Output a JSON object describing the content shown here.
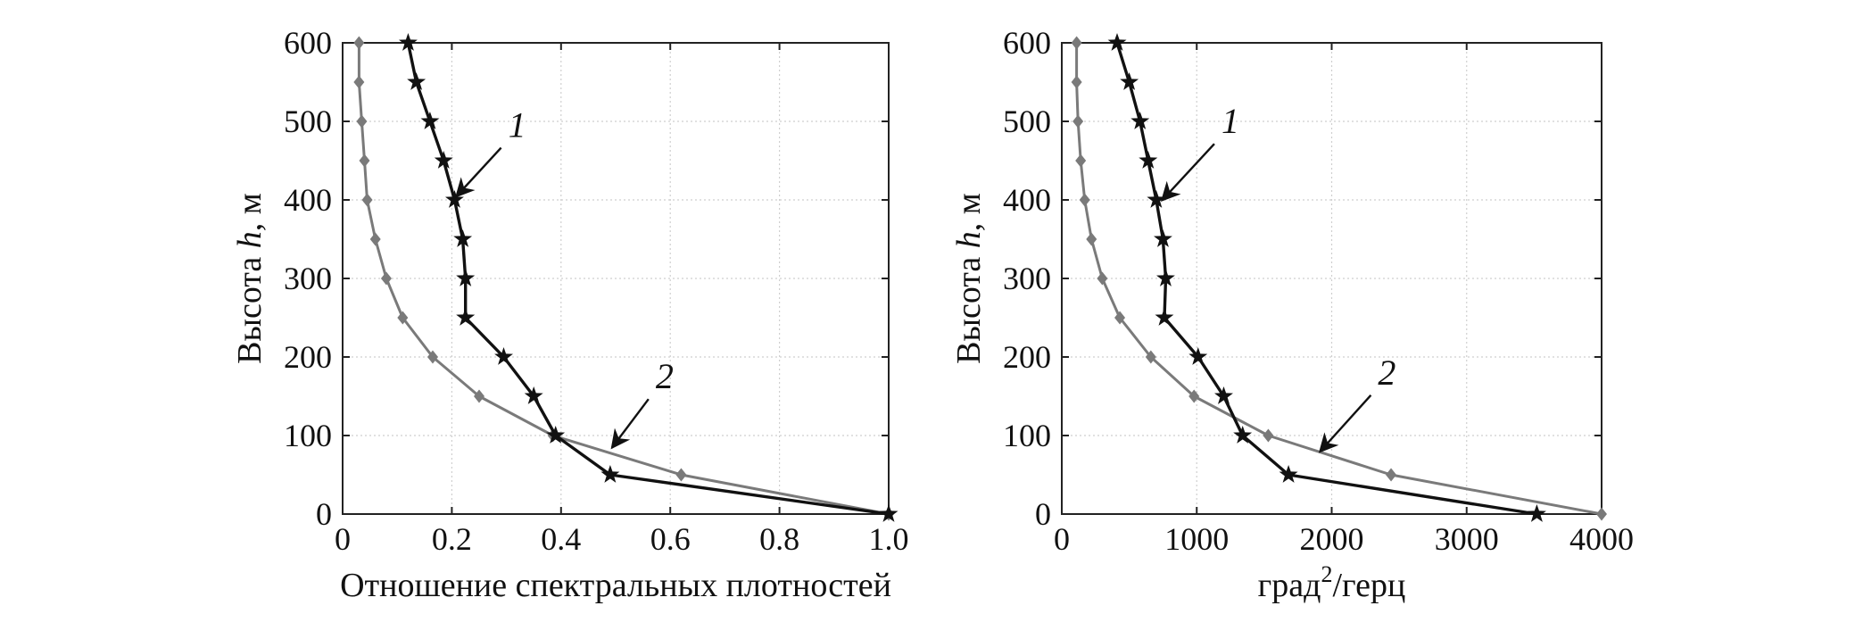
{
  "figure": {
    "colors": {
      "series1": "#111111",
      "series2": "#7a7a7a",
      "axis": "#222222"
    }
  },
  "chart_data": [
    {
      "type": "line",
      "title": "",
      "xlabel": "Отношение спектральных плотностей",
      "ylabel": "Высота h, м",
      "ylabel_parts": {
        "before": "Высота ",
        "italic": "h",
        "after": ", м"
      },
      "xlim": [
        0,
        1.0
      ],
      "ylim": [
        0,
        600
      ],
      "xticks": [
        0,
        0.2,
        0.4,
        0.6,
        0.8,
        1.0
      ],
      "xtick_labels": [
        "0",
        "0.2",
        "0.4",
        "0.6",
        "0.8",
        "1.0"
      ],
      "yticks": [
        0,
        100,
        200,
        300,
        400,
        500,
        600
      ],
      "ytick_labels": [
        "0",
        "100",
        "200",
        "300",
        "400",
        "500",
        "600"
      ],
      "grid": true,
      "series": [
        {
          "name": "1",
          "marker": "star",
          "color": "#111111",
          "x": [
            1.0,
            0.49,
            0.39,
            0.35,
            0.295,
            0.225,
            0.225,
            0.22,
            0.205,
            0.185,
            0.16,
            0.135,
            0.12
          ],
          "y": [
            0,
            50,
            100,
            150,
            200,
            250,
            300,
            350,
            400,
            450,
            500,
            550,
            600
          ]
        },
        {
          "name": "2",
          "marker": "diamond",
          "color": "#7a7a7a",
          "x": [
            1.0,
            0.62,
            0.385,
            0.25,
            0.165,
            0.11,
            0.08,
            0.06,
            0.045,
            0.04,
            0.035,
            0.03,
            0.03
          ],
          "y": [
            0,
            50,
            100,
            150,
            200,
            250,
            300,
            350,
            400,
            450,
            500,
            550,
            600
          ]
        }
      ],
      "annotations": [
        {
          "text": "1",
          "series": "1",
          "point_x": 0.205,
          "point_y": 400,
          "text_x": 0.3,
          "text_y": 480
        },
        {
          "text": "2",
          "series": "2",
          "point_x": 0.49,
          "point_y": 80,
          "text_x": 0.57,
          "text_y": 160
        }
      ]
    },
    {
      "type": "line",
      "title": "",
      "xlabel": "град²/герц",
      "xlabel_parts": {
        "before": "град",
        "sup": "2",
        "after": "/герц"
      },
      "ylabel": "Высота h, м",
      "ylabel_parts": {
        "before": "Высота ",
        "italic": "h",
        "after": ", м"
      },
      "xlim": [
        0,
        4000
      ],
      "ylim": [
        0,
        600
      ],
      "xticks": [
        0,
        1000,
        2000,
        3000,
        4000
      ],
      "xtick_labels": [
        "0",
        "1000",
        "2000",
        "3000",
        "4000"
      ],
      "yticks": [
        0,
        100,
        200,
        300,
        400,
        500,
        600
      ],
      "ytick_labels": [
        "0",
        "100",
        "200",
        "300",
        "400",
        "500",
        "600"
      ],
      "grid": true,
      "series": [
        {
          "name": "1",
          "marker": "star",
          "color": "#111111",
          "x": [
            3520,
            1680,
            1340,
            1200,
            1010,
            760,
            770,
            750,
            700,
            640,
            580,
            500,
            410
          ],
          "y": [
            0,
            50,
            100,
            150,
            200,
            250,
            300,
            350,
            400,
            450,
            500,
            550,
            600
          ]
        },
        {
          "name": "2",
          "marker": "diamond",
          "color": "#7a7a7a",
          "x": [
            4000,
            2440,
            1530,
            980,
            660,
            430,
            300,
            220,
            170,
            140,
            120,
            110,
            110
          ],
          "y": [
            0,
            50,
            100,
            150,
            200,
            250,
            300,
            350,
            400,
            450,
            500,
            550,
            600
          ]
        }
      ],
      "annotations": [
        {
          "text": "1",
          "series": "1",
          "point_x": 730,
          "point_y": 395,
          "text_x": 1170,
          "text_y": 485
        },
        {
          "text": "2",
          "series": "2",
          "point_x": 1900,
          "point_y": 75,
          "text_x": 2330,
          "text_y": 165
        }
      ]
    }
  ]
}
